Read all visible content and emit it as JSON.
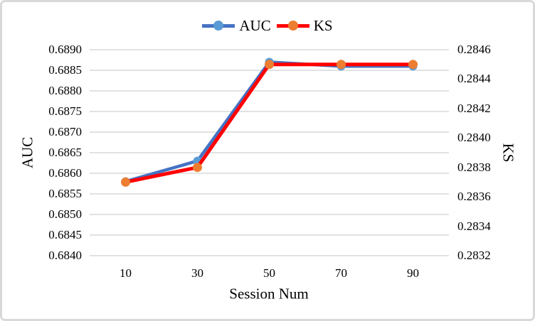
{
  "frame": {
    "background": "#ffffff",
    "border_color": "#d9d9d9"
  },
  "chart_data": {
    "type": "line",
    "title": "",
    "legend": {
      "position": "top",
      "entries": [
        "AUC",
        "KS"
      ]
    },
    "grid": {
      "horizontal": true,
      "color": "#D9D9D9"
    },
    "x": {
      "label": "Session Num",
      "categories": [
        "10",
        "30",
        "50",
        "70",
        "90"
      ]
    },
    "y_left": {
      "label": "AUC",
      "min": 0.684,
      "max": 0.689,
      "step": 0.0005,
      "ticks": [
        "0.6890",
        "0.6885",
        "0.6880",
        "0.6875",
        "0.6870",
        "0.6865",
        "0.6860",
        "0.6855",
        "0.6850",
        "0.6845",
        "0.6840"
      ]
    },
    "y_right": {
      "label": "KS",
      "min": 0.2832,
      "max": 0.2846,
      "step": 0.0002,
      "ticks": [
        "0.2846",
        "0.2844",
        "0.2842",
        "0.2840",
        "0.2838",
        "0.2836",
        "0.2834",
        "0.2832"
      ]
    },
    "series": [
      {
        "name": "AUC",
        "axis": "left",
        "line_color": "#4472C4",
        "marker_color": "#5B9BD5",
        "values": [
          0.6858,
          0.6863,
          0.6887,
          0.6886,
          0.6886
        ]
      },
      {
        "name": "KS",
        "axis": "right",
        "line_color": "#FF0000",
        "marker_color": "#ED7D31",
        "values": [
          0.2837,
          0.2838,
          0.2845,
          0.2845,
          0.2845
        ]
      }
    ]
  }
}
